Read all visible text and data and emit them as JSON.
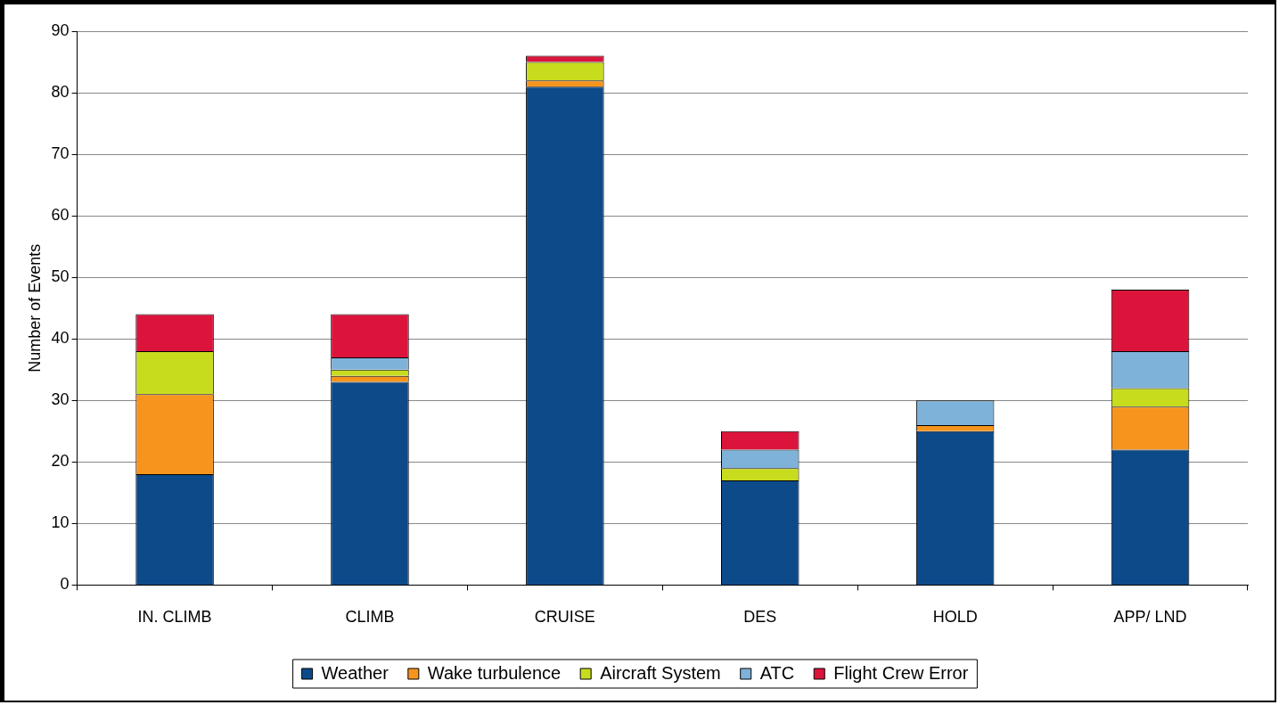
{
  "chart_data": {
    "type": "bar",
    "stacked": true,
    "ylabel": "Number of Events",
    "categories": [
      "IN. CLIMB",
      "CLIMB",
      "CRUISE",
      "DES",
      "HOLD",
      "APP/ LND"
    ],
    "series": [
      {
        "name": "Weather",
        "color": "#0d4a8a",
        "values": [
          18,
          33,
          81,
          17,
          25,
          22
        ]
      },
      {
        "name": "Wake turbulence",
        "color": "#f7941d",
        "values": [
          13,
          1,
          1,
          0,
          1,
          7
        ]
      },
      {
        "name": "Aircraft System",
        "color": "#c8dc1e",
        "values": [
          7,
          1,
          3,
          2,
          0,
          3
        ]
      },
      {
        "name": "ATC",
        "color": "#7fb2d8",
        "values": [
          0,
          2,
          0,
          3,
          4,
          6
        ]
      },
      {
        "name": "Flight Crew Error",
        "color": "#dc143c",
        "values": [
          6,
          7,
          1,
          3,
          0,
          10
        ]
      }
    ],
    "ylim": [
      0,
      90
    ],
    "yticks": [
      0,
      10,
      20,
      30,
      40,
      50,
      60,
      70,
      80,
      90
    ],
    "grid": "y",
    "legend": "bottom"
  }
}
